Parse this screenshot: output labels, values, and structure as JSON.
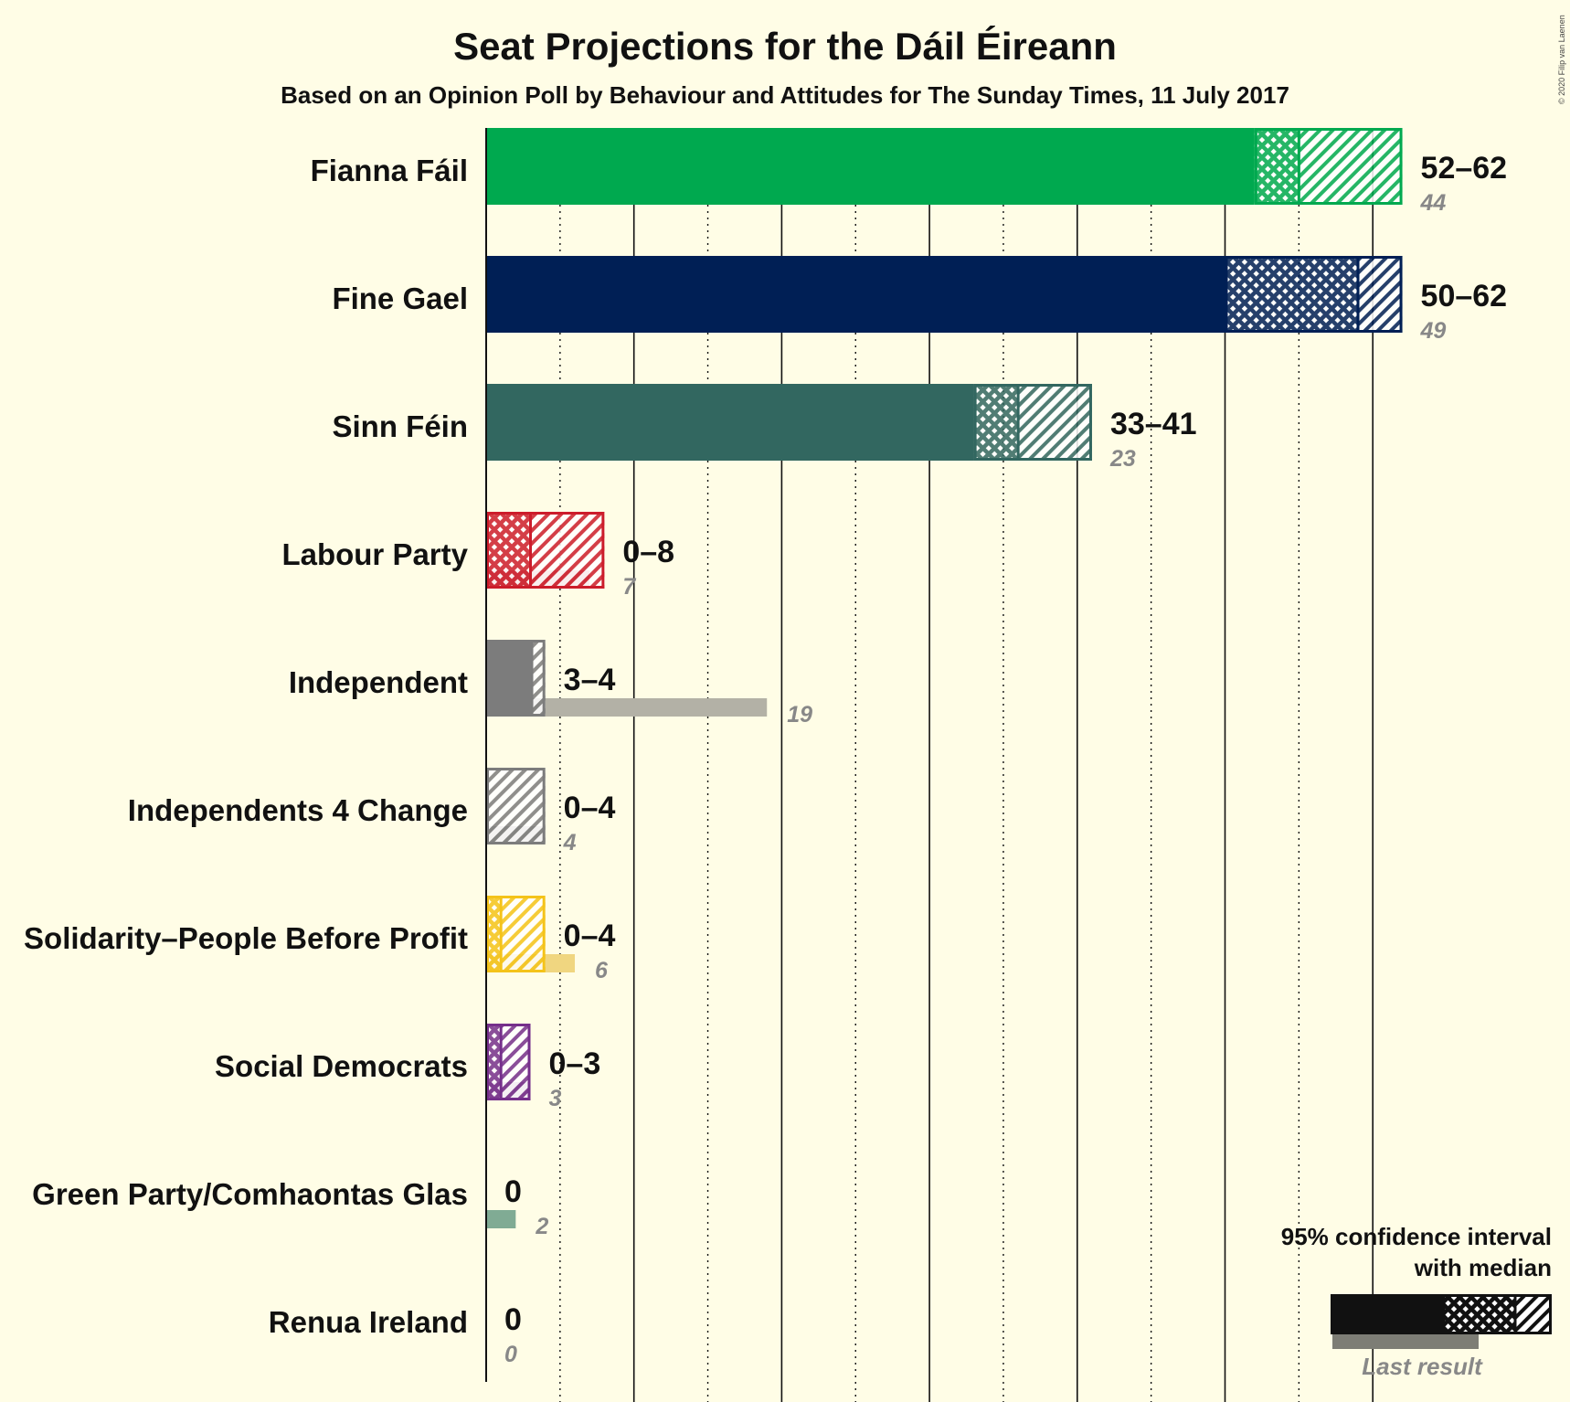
{
  "title": "Seat Projections for the Dáil Éireann",
  "subtitle": "Based on an Opinion Poll by Behaviour and Attitudes for The Sunday Times, 11 July 2017",
  "copyright": "© 2020 Filip van Laenen",
  "chart_data": {
    "type": "bar",
    "orientation": "horizontal",
    "x_range": [
      0,
      62
    ],
    "gridlines_every": 5,
    "parties": [
      {
        "name": "Fianna Fáil",
        "color": "#00a94f",
        "last_color": "#84c293",
        "ci_low": 52,
        "median": 55,
        "ci_high": 62,
        "range_label": "52–62",
        "last": 44,
        "last_label": "44"
      },
      {
        "name": "Fine Gael",
        "color": "#001f55",
        "last_color": "#7d868c",
        "ci_low": 50,
        "median": 59,
        "ci_high": 62,
        "range_label": "50–62",
        "last": 49,
        "last_label": "49"
      },
      {
        "name": "Sinn Féin",
        "color": "#326760",
        "last_color": "#939f95",
        "ci_low": 33,
        "median": 36,
        "ci_high": 41,
        "range_label": "33–41",
        "last": 23,
        "last_label": "23"
      },
      {
        "name": "Labour Party",
        "color": "#cc1c2b",
        "last_color": "#d98f8c",
        "ci_low": 0,
        "median": 3,
        "ci_high": 8,
        "range_label": "0–8",
        "last": 7,
        "last_label": "7"
      },
      {
        "name": "Independent",
        "color": "#7c7c7c",
        "last_color": "#b3b1a6",
        "ci_low": 3,
        "median": 3,
        "ci_high": 4,
        "range_label": "3–4",
        "last": 19,
        "last_label": "19"
      },
      {
        "name": "Independents 4 Change",
        "color": "#7c7c7c",
        "last_color": "#b3b1a6",
        "ci_low": 0,
        "median": 0,
        "ci_high": 4,
        "range_label": "0–4",
        "last": 4,
        "last_label": "4"
      },
      {
        "name": "Solidarity–People Before Profit",
        "color": "#f4c31a",
        "last_color": "#f0d680",
        "ci_low": 0,
        "median": 1,
        "ci_high": 4,
        "range_label": "0–4",
        "last": 6,
        "last_label": "6"
      },
      {
        "name": "Social Democrats",
        "color": "#752f8b",
        "last_color": "#b592ad",
        "ci_low": 0,
        "median": 1,
        "ci_high": 3,
        "range_label": "0–3",
        "last": 3,
        "last_label": "3"
      },
      {
        "name": "Green Party/Comhaontas Glas",
        "color": "#66a884",
        "last_color": "#80ab94",
        "ci_low": 0,
        "median": 0,
        "ci_high": 0,
        "range_label": "0",
        "last": 2,
        "last_label": "2"
      },
      {
        "name": "Renua Ireland",
        "color": "#f47920",
        "last_color": "#b3b1a6",
        "ci_low": 0,
        "median": 0,
        "ci_high": 0,
        "range_label": "0",
        "last": 0,
        "last_label": "0"
      }
    ],
    "legend": {
      "line1": "95% confidence interval",
      "line2": "with median",
      "last_result": "Last result",
      "placement": "bottom-right"
    }
  }
}
